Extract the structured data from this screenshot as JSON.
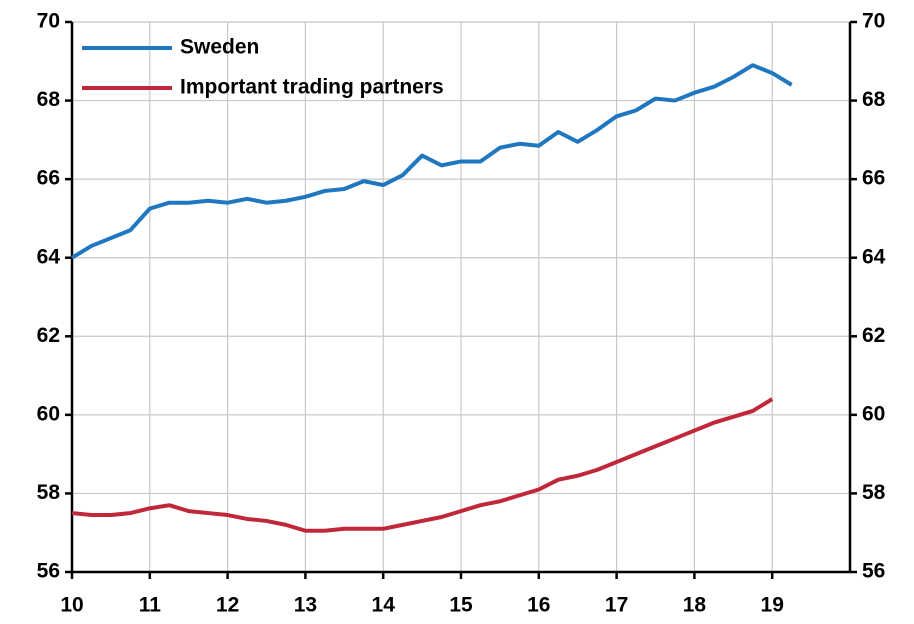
{
  "chart_data": {
    "type": "line",
    "x": [
      10,
      10.25,
      10.5,
      10.75,
      11,
      11.25,
      11.5,
      11.75,
      12,
      12.25,
      12.5,
      12.75,
      13,
      13.25,
      13.5,
      13.75,
      14,
      14.25,
      14.5,
      14.75,
      15,
      15.25,
      15.5,
      15.75,
      16,
      16.25,
      16.5,
      16.75,
      17,
      17.25,
      17.5,
      17.75,
      18,
      18.25,
      18.5,
      18.75,
      19,
      19.25
    ],
    "series": [
      {
        "name": "Sweden",
        "color": "#1f77c0",
        "values": [
          64.0,
          64.3,
          64.5,
          64.7,
          65.25,
          65.4,
          65.4,
          65.45,
          65.4,
          65.5,
          65.4,
          65.45,
          65.55,
          65.7,
          65.75,
          65.95,
          65.85,
          66.1,
          66.6,
          66.35,
          66.45,
          66.45,
          66.8,
          66.9,
          66.85,
          67.2,
          66.95,
          67.25,
          67.6,
          67.75,
          68.05,
          68.0,
          68.2,
          68.35,
          68.6,
          68.9,
          68.7,
          68.4
        ]
      },
      {
        "name": "Important trading partners",
        "color": "#c0283a",
        "values": [
          57.5,
          57.45,
          57.45,
          57.5,
          57.62,
          57.7,
          57.55,
          57.5,
          57.45,
          57.35,
          57.3,
          57.2,
          57.05,
          57.05,
          57.1,
          57.1,
          57.1,
          57.2,
          57.3,
          57.4,
          57.55,
          57.7,
          57.8,
          57.95,
          58.1,
          58.35,
          58.45,
          58.6,
          58.8,
          59.0,
          59.2,
          59.4,
          59.6,
          59.8,
          59.95,
          60.1,
          60.4,
          null
        ]
      }
    ],
    "xlim": [
      10,
      20
    ],
    "xticks": [
      10,
      11,
      12,
      13,
      14,
      15,
      16,
      17,
      18,
      19
    ],
    "ylim": [
      56,
      70
    ],
    "yticks": [
      56,
      58,
      60,
      62,
      64,
      66,
      68,
      70
    ],
    "y2lim": [
      56,
      70
    ],
    "y2ticks": [
      56,
      58,
      60,
      62,
      64,
      66,
      68,
      70
    ],
    "grid": true,
    "legend": "upper left"
  }
}
